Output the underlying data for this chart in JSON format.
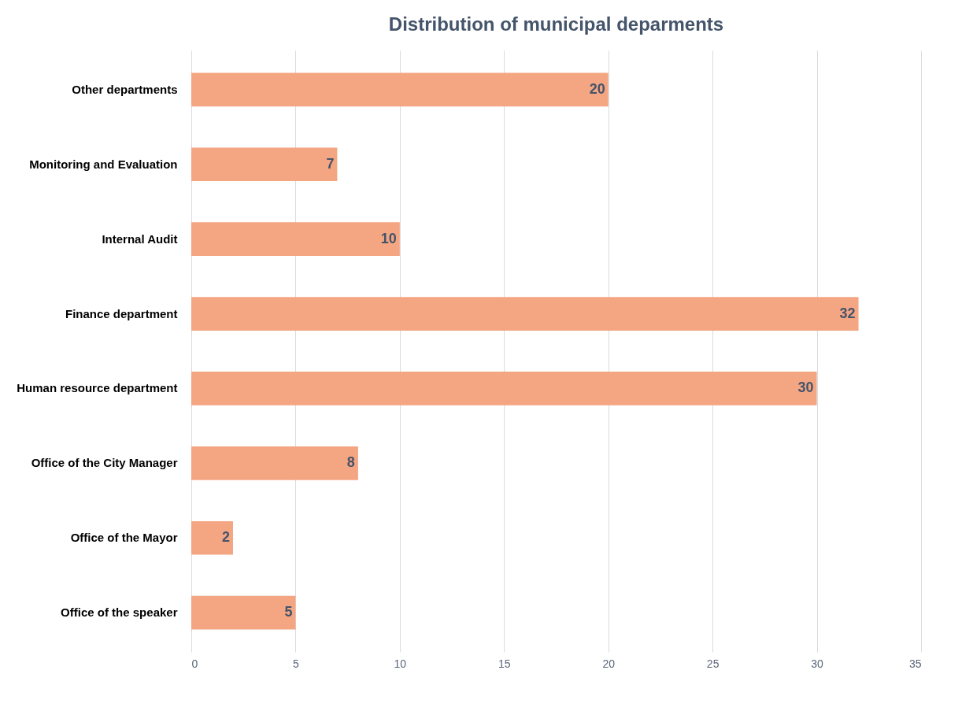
{
  "chart_data": {
    "type": "bar",
    "orientation": "horizontal",
    "title": "Distribution of municipal deparments",
    "categories": [
      "Other departments",
      "Monitoring and Evaluation",
      "Internal Audit",
      "Finance department",
      "Human resource department",
      "Office of the City Manager",
      "Office of the Mayor",
      "Office of the speaker"
    ],
    "values": [
      20,
      7,
      10,
      32,
      30,
      8,
      2,
      5
    ],
    "color": "#f4a582",
    "xlim": [
      0,
      35
    ],
    "xticks": [
      0,
      5,
      10,
      15,
      20,
      25,
      30,
      35
    ],
    "grid": "x",
    "data_labels": true
  }
}
